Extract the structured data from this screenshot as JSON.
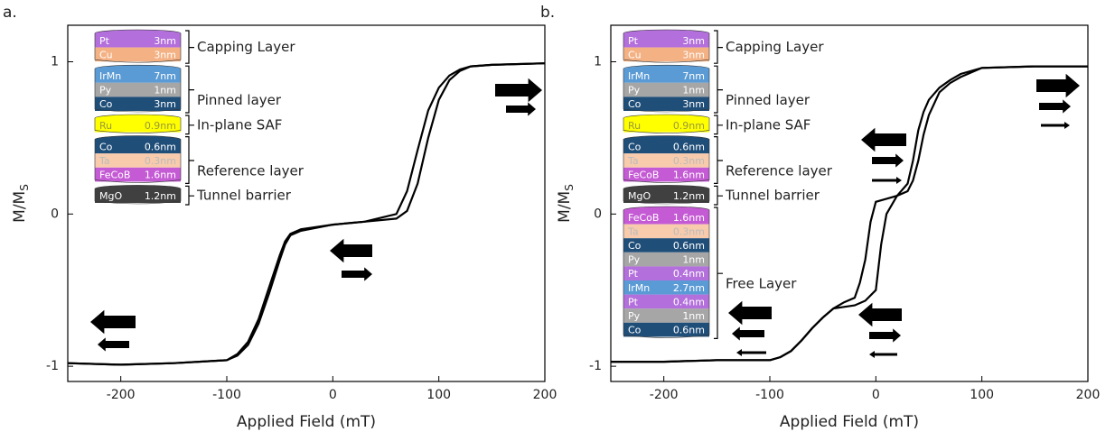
{
  "chart_data": [
    {
      "type": "line",
      "label": "a.",
      "xlabel": "Applied Field (mT)",
      "ylabel": "M/M",
      "ylabel_sub": "S",
      "xlim": [
        -250,
        200
      ],
      "ylim": [
        -1.1,
        1.24
      ],
      "xticks": [
        -200,
        -100,
        0,
        100,
        200
      ],
      "yticks": [
        -1,
        0,
        1
      ],
      "series": [
        {
          "color": "#000000",
          "x": [
            -250,
            -200,
            -150,
            -100,
            -90,
            -80,
            -70,
            -60,
            -50,
            -45,
            -40,
            -30,
            0,
            30,
            60,
            70,
            80,
            90,
            100,
            110,
            120,
            130,
            150,
            200
          ],
          "values": [
            -0.98,
            -0.99,
            -0.98,
            -0.96,
            -0.93,
            -0.86,
            -0.72,
            -0.52,
            -0.3,
            -0.2,
            -0.14,
            -0.11,
            -0.07,
            -0.05,
            -0.03,
            0.02,
            0.2,
            0.5,
            0.75,
            0.88,
            0.94,
            0.97,
            0.98,
            0.99
          ]
        },
        {
          "color": "#000000",
          "x": [
            -250,
            -200,
            -150,
            -100,
            -90,
            -80,
            -70,
            -60,
            -50,
            -45,
            -40,
            -30,
            0,
            30,
            60,
            70,
            80,
            90,
            100,
            110,
            120,
            130,
            150,
            200
          ],
          "values": [
            -0.98,
            -0.99,
            -0.98,
            -0.96,
            -0.92,
            -0.84,
            -0.69,
            -0.48,
            -0.27,
            -0.18,
            -0.13,
            -0.1,
            -0.07,
            -0.05,
            0.0,
            0.15,
            0.42,
            0.68,
            0.83,
            0.91,
            0.95,
            0.97,
            0.98,
            0.99
          ]
        }
      ],
      "stack": [
        {
          "label": "Capping Layer",
          "layers": [
            {
              "name": "Pt",
              "thickness": "3nm",
              "color": "#b36fdb",
              "text_color": "#ffffff"
            },
            {
              "name": "Cu",
              "thickness": "3nm",
              "color": "#f4b183",
              "text_color": "#ffffff"
            }
          ]
        },
        {
          "label": "Pinned layer",
          "layers": [
            {
              "name": "IrMn",
              "thickness": "7nm",
              "color": "#5b9bd5",
              "text_color": "#ffffff"
            },
            {
              "name": "Py",
              "thickness": "1nm",
              "color": "#a6a6a6",
              "text_color": "#ffffff"
            },
            {
              "name": "Co",
              "thickness": "3nm",
              "color": "#1f4e79",
              "text_color": "#ffffff"
            }
          ]
        },
        {
          "label": "In-plane SAF",
          "layers": [
            {
              "name": "Ru",
              "thickness": "0.9nm",
              "color": "#ffff00",
              "text_color": "#9a9a3a"
            }
          ]
        },
        {
          "label": "Reference layer",
          "layers": [
            {
              "name": "Co",
              "thickness": "0.6nm",
              "color": "#1f4e79",
              "text_color": "#ffffff"
            },
            {
              "name": "Ta",
              "thickness": "0.3nm",
              "color": "#f8cbad",
              "text_color": "#bbbbbb"
            },
            {
              "name": "FeCoB",
              "thickness": "1.6nm",
              "color": "#c55ad5",
              "text_color": "#ffffff"
            }
          ]
        },
        {
          "label": "Tunnel barrier",
          "layers": [
            {
              "name": "MgO",
              "thickness": "1.2nm",
              "color": "#404040",
              "text_color": "#ffffff"
            }
          ]
        }
      ]
    },
    {
      "type": "line",
      "label": "b.",
      "xlabel": "Applied Field (mT)",
      "ylabel": "M/M",
      "ylabel_sub": "S",
      "xlim": [
        -250,
        200
      ],
      "ylim": [
        -1.1,
        1.24
      ],
      "xticks": [
        -200,
        -100,
        0,
        100,
        200
      ],
      "yticks": [
        -1,
        0,
        1
      ],
      "series": [
        {
          "color": "#000000",
          "x": [
            -250,
            -200,
            -150,
            -100,
            -90,
            -80,
            -70,
            -60,
            -50,
            -40,
            -30,
            -20,
            -15,
            -10,
            -5,
            0,
            10,
            20,
            30,
            35,
            40,
            45,
            50,
            60,
            70,
            80,
            100,
            150,
            200
          ],
          "values": [
            -0.97,
            -0.97,
            -0.96,
            -0.96,
            -0.94,
            -0.9,
            -0.83,
            -0.75,
            -0.68,
            -0.62,
            -0.58,
            -0.55,
            -0.45,
            -0.3,
            -0.05,
            0.08,
            0.1,
            0.12,
            0.2,
            0.35,
            0.55,
            0.67,
            0.75,
            0.83,
            0.88,
            0.92,
            0.96,
            0.97,
            0.97
          ]
        },
        {
          "color": "#000000",
          "x": [
            -250,
            -200,
            -150,
            -100,
            -90,
            -80,
            -70,
            -60,
            -50,
            -40,
            -30,
            -20,
            -10,
            0,
            5,
            10,
            20,
            30,
            35,
            40,
            45,
            50,
            60,
            70,
            80,
            100,
            150,
            200
          ],
          "values": [
            -0.97,
            -0.97,
            -0.96,
            -0.96,
            -0.94,
            -0.9,
            -0.83,
            -0.75,
            -0.68,
            -0.62,
            -0.61,
            -0.6,
            -0.57,
            -0.5,
            -0.2,
            0.0,
            0.12,
            0.15,
            0.22,
            0.35,
            0.52,
            0.65,
            0.8,
            0.86,
            0.9,
            0.96,
            0.97,
            0.97
          ]
        }
      ],
      "stack": [
        {
          "label": "Capping Layer",
          "layers": [
            {
              "name": "Pt",
              "thickness": "3nm",
              "color": "#b36fdb",
              "text_color": "#ffffff"
            },
            {
              "name": "Cu",
              "thickness": "3nm",
              "color": "#f4b183",
              "text_color": "#ffffff"
            }
          ]
        },
        {
          "label": "Pinned layer",
          "layers": [
            {
              "name": "IrMn",
              "thickness": "7nm",
              "color": "#5b9bd5",
              "text_color": "#ffffff"
            },
            {
              "name": "Py",
              "thickness": "1nm",
              "color": "#a6a6a6",
              "text_color": "#ffffff"
            },
            {
              "name": "Co",
              "thickness": "3nm",
              "color": "#1f4e79",
              "text_color": "#ffffff"
            }
          ]
        },
        {
          "label": "In-plane SAF",
          "layers": [
            {
              "name": "Ru",
              "thickness": "0.9nm",
              "color": "#ffff00",
              "text_color": "#9a9a3a"
            }
          ]
        },
        {
          "label": "Reference layer",
          "layers": [
            {
              "name": "Co",
              "thickness": "0.6nm",
              "color": "#1f4e79",
              "text_color": "#ffffff"
            },
            {
              "name": "Ta",
              "thickness": "0.3nm",
              "color": "#f8cbad",
              "text_color": "#bbbbbb"
            },
            {
              "name": "FeCoB",
              "thickness": "1.6nm",
              "color": "#c55ad5",
              "text_color": "#ffffff"
            }
          ]
        },
        {
          "label": "Tunnel barrier",
          "layers": [
            {
              "name": "MgO",
              "thickness": "1.2nm",
              "color": "#404040",
              "text_color": "#ffffff"
            }
          ]
        },
        {
          "label": "Free Layer",
          "layers": [
            {
              "name": "FeCoB",
              "thickness": "1.6nm",
              "color": "#c55ad5",
              "text_color": "#ffffff"
            },
            {
              "name": "Ta",
              "thickness": "0.3nm",
              "color": "#f8cbad",
              "text_color": "#bbbbbb"
            },
            {
              "name": "Co",
              "thickness": "0.6nm",
              "color": "#1f4e79",
              "text_color": "#ffffff"
            },
            {
              "name": "Py",
              "thickness": "1nm",
              "color": "#a6a6a6",
              "text_color": "#ffffff"
            },
            {
              "name": "Pt",
              "thickness": "0.4nm",
              "color": "#b36fdb",
              "text_color": "#ffffff"
            },
            {
              "name": "IrMn",
              "thickness": "2.7nm",
              "color": "#5b9bd5",
              "text_color": "#ffffff"
            },
            {
              "name": "Pt",
              "thickness": "0.4nm",
              "color": "#b36fdb",
              "text_color": "#ffffff"
            },
            {
              "name": "Py",
              "thickness": "1nm",
              "color": "#a6a6a6",
              "text_color": "#ffffff"
            },
            {
              "name": "Co",
              "thickness": "0.6nm",
              "color": "#1f4e79",
              "text_color": "#ffffff"
            }
          ]
        }
      ]
    }
  ]
}
